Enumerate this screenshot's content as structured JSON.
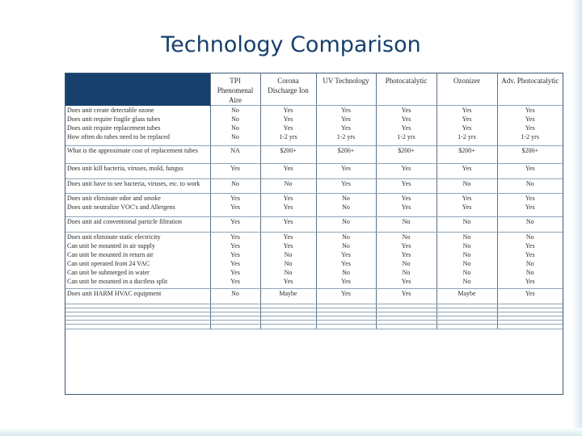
{
  "slide": {
    "title": "Technology Comparison"
  },
  "table": {
    "columns": [
      "TPI Phenomenal Aire",
      "Corona Discharge Ion",
      "UV Technology",
      "Photocatalytic",
      "Ozonizer",
      "Adv. Photocatalytic"
    ],
    "groups": [
      {
        "questions": [
          "Does unit create detectable ozone",
          "Does unit require fragile glass tubes",
          "Does unit require replacement tubes",
          "How often do tubes need to be replaced"
        ],
        "values": [
          [
            "No",
            "No",
            "No",
            "No"
          ],
          [
            "Yes",
            "Yes",
            "Yes",
            "1-2 yrs"
          ],
          [
            "Yes",
            "Yes",
            "Yes",
            "1-2 yrs"
          ],
          [
            "Yes",
            "Yes",
            "Yes",
            "1-2 yrs"
          ],
          [
            "Yes",
            "Yes",
            "Yes",
            "1-2 yrs"
          ],
          [
            "Yes",
            "Yes",
            "Yes",
            "1-2 yrs"
          ]
        ]
      },
      {
        "questions": [
          "What is the approximate cost of replacement tubes"
        ],
        "values": [
          [
            "NA"
          ],
          [
            "$200+"
          ],
          [
            "$200+"
          ],
          [
            "$200+"
          ],
          [
            "$200+"
          ],
          [
            "$200+"
          ]
        ]
      },
      {
        "questions": [
          "Does unit kill bacteria, viruses, mold, fungus"
        ],
        "values": [
          [
            "Yes"
          ],
          [
            "Yes"
          ],
          [
            "Yes"
          ],
          [
            "Yes"
          ],
          [
            "Yes"
          ],
          [
            "Yes"
          ]
        ]
      },
      {
        "questions": [
          "Does unit have to see bacteria, viruses, etc. to work"
        ],
        "values": [
          [
            "No"
          ],
          [
            "No"
          ],
          [
            "Yes"
          ],
          [
            "Yes"
          ],
          [
            "No"
          ],
          [
            "No"
          ]
        ]
      },
      {
        "questions": [
          "Does unit eliminate odor and smoke",
          "Does unit neutralize VOC's and Allergens"
        ],
        "values": [
          [
            "Yes",
            "Yes"
          ],
          [
            "Yes",
            "Yes"
          ],
          [
            "No",
            "No"
          ],
          [
            "Yes",
            "Yes"
          ],
          [
            "Yes",
            "Yes"
          ],
          [
            "Yes",
            "Yes"
          ]
        ]
      },
      {
        "questions": [
          "Does unit aid conventional particle filtration"
        ],
        "values": [
          [
            "Yes"
          ],
          [
            "Yes"
          ],
          [
            "No"
          ],
          [
            "No"
          ],
          [
            "No"
          ],
          [
            "No"
          ]
        ]
      },
      {
        "questions": [
          "Does unit eliminate static electricity",
          "Can unit be mounted in air supply",
          "Can unit be mounted in return air",
          "Can unit operated from 24 VAC",
          "Can unit be submerged in water",
          "Can unit be mounted in a ductless split"
        ],
        "values": [
          [
            "Yes",
            "Yes",
            "Yes",
            "Yes",
            "Yes",
            "Yes"
          ],
          [
            "Yes",
            "Yes",
            "No",
            "No",
            "No",
            "Yes"
          ],
          [
            "No",
            "No",
            "Yes",
            "Yes",
            "No",
            "Yes"
          ],
          [
            "No",
            "Yes",
            "Yes",
            "No",
            "No",
            "Yes"
          ],
          [
            "No",
            "No",
            "No",
            "No",
            "No",
            "No"
          ],
          [
            "No",
            "Yes",
            "Yes",
            "No",
            "No",
            "Yes"
          ]
        ]
      },
      {
        "questions": [
          "Does unit HARM HVAC equipment"
        ],
        "values": [
          [
            "No"
          ],
          [
            "Maybe"
          ],
          [
            "Yes"
          ],
          [
            "Yes"
          ],
          [
            "Maybe"
          ],
          [
            "Yes"
          ]
        ]
      }
    ]
  }
}
